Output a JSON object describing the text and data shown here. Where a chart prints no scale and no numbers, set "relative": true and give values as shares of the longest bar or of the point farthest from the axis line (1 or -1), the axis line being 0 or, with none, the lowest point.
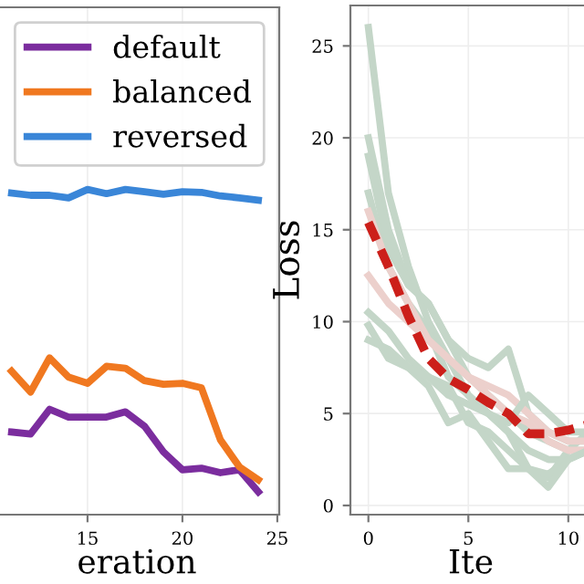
{
  "chart_data": [
    {
      "type": "line",
      "xlabel": "eration",
      "relative": true,
      "x": [
        11,
        12,
        13,
        14,
        15,
        16,
        17,
        18,
        19,
        20,
        21,
        22,
        23,
        24
      ],
      "xlim": [
        10.1,
        25.1
      ],
      "xticks": [
        15,
        20,
        25
      ],
      "grid": "x",
      "legend": "top right",
      "tick_labels": "x",
      "series": [
        {
          "name": "default",
          "color": "#7b2d9e",
          "values": [
            0.254,
            0.248,
            0.324,
            0.3,
            0.3,
            0.3,
            0.316,
            0.272,
            0.193,
            0.138,
            0.143,
            0.129,
            0.138,
            0.07
          ]
        },
        {
          "name": "balanced",
          "color": "#f07820",
          "values": [
            0.441,
            0.377,
            0.482,
            0.423,
            0.404,
            0.456,
            0.45,
            0.412,
            0.401,
            0.404,
            0.39,
            0.23,
            0.147,
            0.107
          ]
        },
        {
          "name": "reversed",
          "color": "#3a86d8",
          "values": [
            0.989,
            0.982,
            0.982,
            0.974,
            1,
            0.987,
            1,
            0.993,
            0.985,
            0.993,
            0.991,
            0.98,
            0.974,
            0.967
          ]
        }
      ]
    },
    {
      "type": "line",
      "xlabel": "Ite",
      "ylabel": "Loss",
      "x": [
        0,
        1,
        2,
        3,
        4,
        5,
        6,
        7,
        8,
        9,
        10,
        11
      ],
      "xlim": [
        -0.9,
        11.15
      ],
      "ylim": [
        -0.5,
        27.2
      ],
      "xticks": [
        0,
        5,
        10
      ],
      "yticks": [
        0,
        5,
        10,
        15,
        20,
        25
      ],
      "grid": true,
      "series": [
        {
          "color": "#c4d6c8",
          "values": [
            26,
            17,
            13,
            10,
            8,
            6,
            5,
            4,
            3,
            2.5,
            2.5,
            3
          ]
        },
        {
          "color": "#c4d6c8",
          "values": [
            20,
            15,
            12,
            11,
            9,
            7,
            6,
            5,
            4,
            3.5,
            3,
            3
          ]
        },
        {
          "color": "#c4d6c8",
          "values": [
            19,
            14,
            12,
            11,
            9,
            8,
            7.5,
            8.5,
            5,
            4,
            3.5,
            3.5
          ]
        },
        {
          "color": "#c4d6c8",
          "values": [
            17,
            13,
            11,
            9.5,
            7,
            6,
            5,
            4,
            2,
            1.5,
            3,
            4
          ]
        },
        {
          "color": "#ecd0cc",
          "values": [
            16,
            13,
            11,
            9,
            8,
            7,
            6.5,
            6,
            5,
            4,
            3.5,
            3.5
          ]
        },
        {
          "color": "#ecd0cc",
          "values": [
            12.5,
            11,
            10,
            9,
            8,
            7,
            6,
            5,
            4.5,
            3.5,
            3,
            3
          ]
        },
        {
          "color": "#c4d6c8",
          "values": [
            10.5,
            9.5,
            8,
            7,
            6.5,
            4.5,
            4,
            3,
            2,
            1.7,
            2.5,
            3
          ]
        },
        {
          "color": "#c4d6c8",
          "values": [
            9.8,
            8,
            7.5,
            6.5,
            4.5,
            5,
            3.5,
            2,
            2,
            1,
            2.5,
            3
          ]
        },
        {
          "color": "#c4d6c8",
          "values": [
            9,
            8.5,
            7.5,
            7,
            6,
            5.5,
            5,
            4.5,
            6,
            5,
            4,
            4
          ]
        },
        {
          "color": "#cc1f1a",
          "line_style": "dashed",
          "values": [
            15.4,
            13,
            10.3,
            8,
            6.9,
            6.3,
            5.6,
            5,
            3.9,
            3.9,
            4.1,
            4.4
          ]
        }
      ]
    }
  ]
}
